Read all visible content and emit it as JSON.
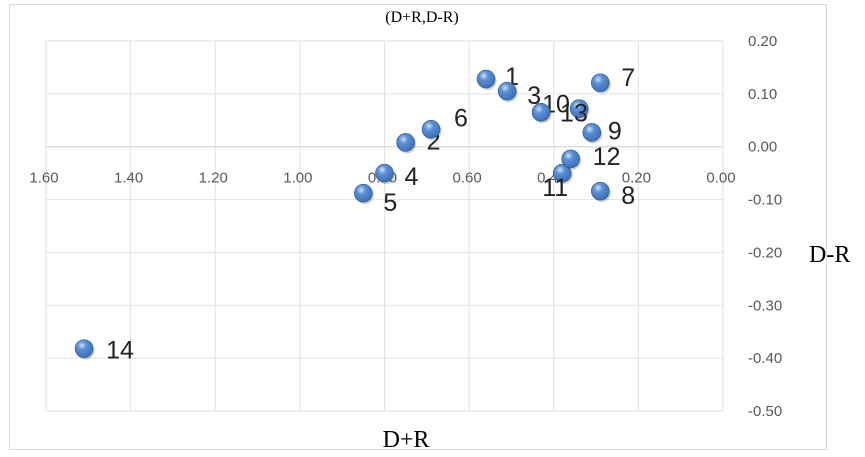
{
  "chart_data": {
    "type": "scatter",
    "title": "(D+R,D-R)",
    "xlabel": "D+R",
    "ylabel": "D-R",
    "xlim": [
      1.6,
      0.0
    ],
    "ylim": [
      -0.5,
      0.2
    ],
    "x_reversed": true,
    "grid": true,
    "marker_color": "#3a6fb5",
    "x_ticks": [
      "1.60",
      "1.40",
      "1.20",
      "1.00",
      "0.80",
      "0.60",
      "0.40",
      "0.20",
      "0.00"
    ],
    "y_ticks": [
      "0.20",
      "0.10",
      "0.00",
      "-0.10",
      "-0.20",
      "-0.30",
      "-0.40",
      "-0.50"
    ],
    "points": [
      {
        "label": "1",
        "x": 0.56,
        "y": 0.128
      },
      {
        "label": "2",
        "x": 0.75,
        "y": 0.008
      },
      {
        "label": "3",
        "x": 0.51,
        "y": 0.105
      },
      {
        "label": "4",
        "x": 0.8,
        "y": -0.05
      },
      {
        "label": "5",
        "x": 0.85,
        "y": -0.088
      },
      {
        "label": "6",
        "x": 0.69,
        "y": 0.033
      },
      {
        "label": "7",
        "x": 0.29,
        "y": 0.121
      },
      {
        "label": "8",
        "x": 0.29,
        "y": -0.084
      },
      {
        "label": "9",
        "x": 0.31,
        "y": 0.027
      },
      {
        "label": "10",
        "x": 0.34,
        "y": 0.072
      },
      {
        "label": "11",
        "x": 0.38,
        "y": -0.05
      },
      {
        "label": "12",
        "x": 0.36,
        "y": -0.023
      },
      {
        "label": "13",
        "x": 0.43,
        "y": 0.065
      },
      {
        "label": "14",
        "x": 1.51,
        "y": -0.382
      }
    ]
  }
}
